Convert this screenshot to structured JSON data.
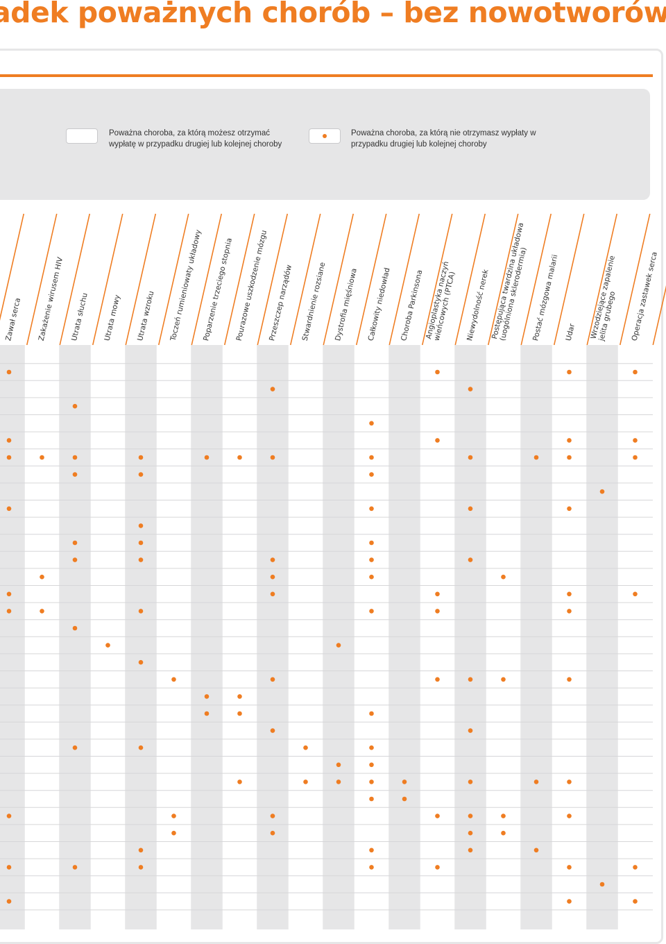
{
  "colors": {
    "accent": "#ef7d22",
    "panel": "#e6e6e7",
    "grid_line": "#d6d6d8",
    "text": "#333333"
  },
  "header": {
    "title": "adek poważnych chorób – bez nowotworów"
  },
  "legend": {
    "item1_text": "Poważna choroba, za którą możesz otrzymać wypłatę w przypadku drugiej lub kolejnej choroby",
    "item2_text": "Poważna choroba, za którą nie otrzymasz wypłaty w przypadku drugiej lub kolejnej choroby"
  },
  "table": {
    "columns": [
      [
        "Zawał serca"
      ],
      [
        "Zakażenie wirusem HIV"
      ],
      [
        "Utrata słuchu"
      ],
      [
        "Utrata mowy"
      ],
      [
        "Utrata wzroku"
      ],
      [
        "Toczeń rumieniowaty układowy"
      ],
      [
        "Poparzenie trzeciego stopnia"
      ],
      [
        "Pourazowe uszkodzenie mózgu"
      ],
      [
        "Przeszczep narządów"
      ],
      [
        "Stwardnienie rozsiane"
      ],
      [
        "Dystrofia mięśniowa"
      ],
      [
        "Całkowity niedowład"
      ],
      [
        "Choroba Parkinsona"
      ],
      [
        "Angioplastyka naczyń",
        "wieńcowych (PTCA)"
      ],
      [
        "Niewydolność nerek"
      ],
      [
        "Postępująca twardzina układowa",
        "(uogólniona sklerodermia)"
      ],
      [
        "Postać mózgowa malarii"
      ],
      [
        "Udar"
      ],
      [
        "Wrzodziejące zapalenie",
        "jelita grubego"
      ],
      [
        "Operacja zastawek serca"
      ]
    ],
    "rows": [
      [
        0,
        13,
        17,
        19
      ],
      [
        8,
        14
      ],
      [
        2
      ],
      [
        11
      ],
      [
        0,
        13,
        17,
        19
      ],
      [
        0,
        1,
        2,
        4,
        6,
        7,
        8,
        11,
        14,
        16,
        17,
        19
      ],
      [
        2,
        4,
        11
      ],
      [
        18
      ],
      [
        0,
        11,
        14,
        17
      ],
      [
        4
      ],
      [
        2,
        4,
        11
      ],
      [
        2,
        4,
        8,
        11,
        14
      ],
      [
        1,
        8,
        11,
        15
      ],
      [
        0,
        8,
        13,
        17,
        19
      ],
      [
        0,
        1,
        4,
        11,
        13,
        17
      ],
      [
        2
      ],
      [
        3,
        10
      ],
      [
        4
      ],
      [
        5,
        8,
        13,
        14,
        15,
        17
      ],
      [
        6,
        7
      ],
      [
        6,
        7,
        11
      ],
      [
        8,
        14
      ],
      [
        2,
        4,
        9,
        11
      ],
      [
        10,
        11
      ],
      [
        7,
        9,
        10,
        11,
        12,
        14,
        16,
        17
      ],
      [
        11,
        12
      ],
      [
        0,
        5,
        8,
        13,
        14,
        15,
        17
      ],
      [
        5,
        8,
        14,
        15
      ],
      [
        4,
        11,
        14,
        16
      ],
      [
        0,
        2,
        4,
        11,
        13,
        17,
        19
      ],
      [
        18
      ],
      [
        0,
        17,
        19
      ]
    ]
  }
}
